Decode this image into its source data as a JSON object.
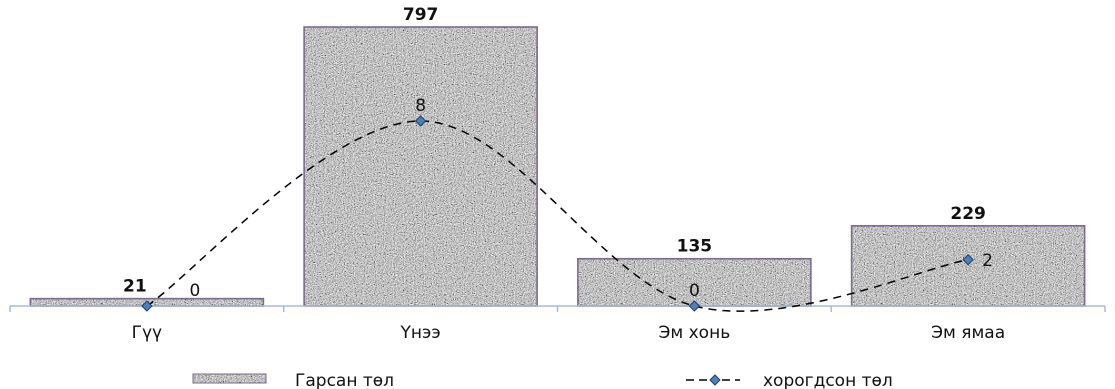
{
  "chart_data": {
    "type": "bar",
    "categories": [
      "Гүү",
      "Үнээ",
      "Эм хонь",
      "Эм ямаа"
    ],
    "series": [
      {
        "name": "Гарсан төл",
        "kind": "bar",
        "values": [
          21,
          797,
          135,
          229
        ]
      },
      {
        "name": "хорогдсон төл",
        "kind": "line",
        "style": "dashed smooth with diamond markers",
        "values": [
          0,
          8,
          0,
          2
        ]
      }
    ],
    "legend_position": "bottom",
    "grid": false,
    "colors": {
      "bar_fill": "#9a9a9a",
      "bar_border": "#7b6a8f",
      "line": "#000000",
      "marker": "#4f7fb8",
      "axis": "#a8bcd6"
    }
  }
}
